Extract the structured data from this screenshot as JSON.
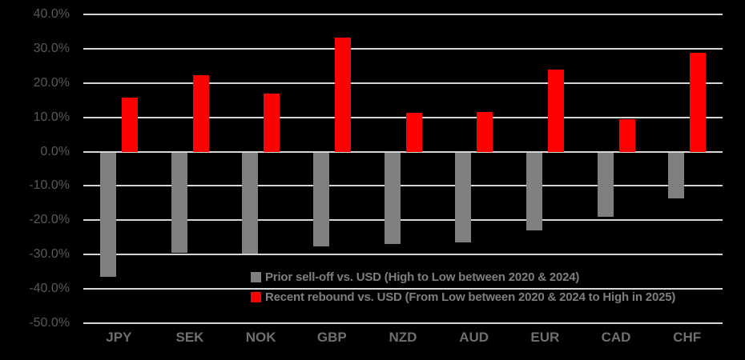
{
  "chart_data": {
    "type": "bar",
    "title": "",
    "xlabel": "",
    "ylabel": "",
    "unit": "%",
    "categories": [
      "JPY",
      "SEK",
      "NOK",
      "GBP",
      "NZD",
      "AUD",
      "EUR",
      "CAD",
      "CHF"
    ],
    "series": [
      {
        "name": "Prior sell-off vs. USD (High to Low between 2020 & 2024)",
        "color": "#808080",
        "values": [
          -36.3,
          -29.3,
          -29.5,
          -27.4,
          -26.7,
          -26.2,
          -22.7,
          -18.7,
          -13.5
        ]
      },
      {
        "name": "Recent rebound vs. USD (From Low between 2020 & 2024 to High in 2025)",
        "color": "#FF0000",
        "values": [
          15.8,
          22.3,
          16.9,
          33.2,
          11.4,
          11.5,
          23.9,
          9.4,
          28.7
        ]
      }
    ],
    "ylim": [
      -50,
      40
    ],
    "ytick_step": 10,
    "ytick_labels": [
      "40.0%",
      "30.0%",
      "20.0%",
      "10.0%",
      "0.0%",
      "-10.0%",
      "-20.0%",
      "-30.0%",
      "-40.0%",
      "-50.0%"
    ],
    "grid": true,
    "legend_position": "inside-bottom-right",
    "style": {
      "background": "#000000",
      "gridline_color": "#D6D6D6",
      "y_label_color": "#595959",
      "x_label_color": "#6f6f6f",
      "legend_text_color": "#7f7f7f"
    }
  }
}
